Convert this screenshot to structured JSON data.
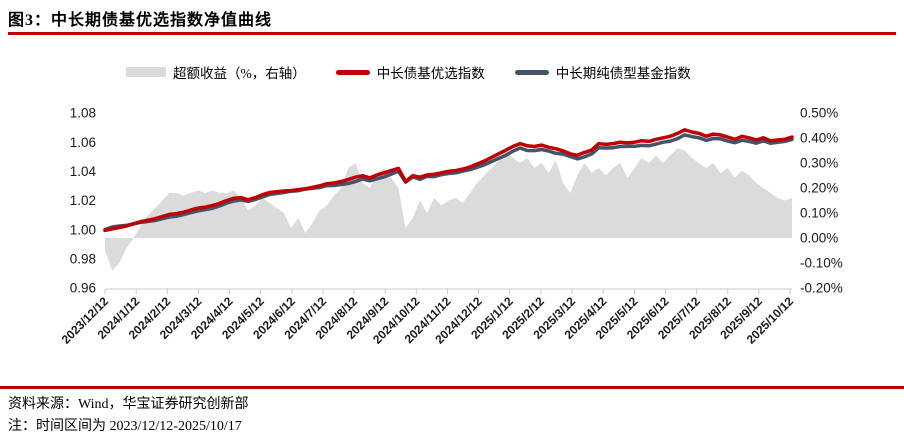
{
  "figure": {
    "title": "图3：中长期债基优选指数净值曲线",
    "source_line": "资料来源：Wind，华宝证券研究创新部",
    "note_line": "注：时间区间为 2023/12/12-2025/10/17",
    "accent_color": "#C00000",
    "axis_line_color": "#C9C9C9",
    "tick_text_color": "#1A1A1A"
  },
  "legend": {
    "items": [
      {
        "label": "超额收益（%，右轴）",
        "swatch": "area",
        "color": "#DBDBDB"
      },
      {
        "label": "中长债基优选指数",
        "swatch": "line",
        "color": "#C00000"
      },
      {
        "label": "中长期纯债型基金指数",
        "swatch": "line",
        "color": "#44546A"
      }
    ]
  },
  "chart_data": {
    "type": "line",
    "title": "中长期债基优选指数净值曲线",
    "grid": false,
    "legend_position": "top",
    "x_tick_labels": [
      "2023/12/12",
      "2024/1/12",
      "2024/2/12",
      "2024/3/12",
      "2024/4/12",
      "2024/5/12",
      "2024/6/12",
      "2024/7/12",
      "2024/8/12",
      "2024/9/12",
      "2024/10/12",
      "2024/11/12",
      "2024/12/12",
      "2025/1/12",
      "2025/2/12",
      "2025/3/12",
      "2025/4/12",
      "2025/5/12",
      "2025/6/12",
      "2025/7/12",
      "2025/8/12",
      "2025/9/12",
      "2025/10/12"
    ],
    "left_axis": {
      "ticks": [
        "1.08",
        "1.06",
        "1.04",
        "1.02",
        "1.00",
        "0.98",
        "0.96"
      ],
      "min": 0.96,
      "max": 1.08,
      "step": 0.02
    },
    "right_axis": {
      "ticks": [
        "0.50%",
        "0.40%",
        "0.30%",
        "0.20%",
        "0.10%",
        "0.00%",
        "-0.10%",
        "-0.20%"
      ],
      "min": -0.2,
      "max": 0.5,
      "step": 0.1
    },
    "sampling": "weekly points from 2023/12/12 to 2025/10/17",
    "series": [
      {
        "name": "超额收益（%，右轴）",
        "type": "area",
        "axis": "right",
        "color": "#DBDBDB",
        "values": [
          -0.05,
          -0.13,
          -0.1,
          -0.04,
          0.0,
          0.05,
          0.09,
          0.12,
          0.15,
          0.18,
          0.18,
          0.17,
          0.18,
          0.19,
          0.18,
          0.19,
          0.18,
          0.18,
          0.19,
          0.16,
          0.11,
          0.13,
          0.16,
          0.14,
          0.12,
          0.1,
          0.04,
          0.08,
          0.02,
          0.06,
          0.11,
          0.13,
          0.17,
          0.2,
          0.28,
          0.3,
          0.22,
          0.2,
          0.26,
          0.28,
          0.24,
          0.2,
          0.04,
          0.08,
          0.15,
          0.1,
          0.16,
          0.13,
          0.15,
          0.16,
          0.14,
          0.18,
          0.22,
          0.25,
          0.28,
          0.31,
          0.35,
          0.32,
          0.3,
          0.32,
          0.28,
          0.3,
          0.26,
          0.31,
          0.22,
          0.18,
          0.25,
          0.3,
          0.26,
          0.28,
          0.25,
          0.28,
          0.3,
          0.24,
          0.28,
          0.32,
          0.3,
          0.33,
          0.3,
          0.33,
          0.36,
          0.35,
          0.32,
          0.3,
          0.28,
          0.3,
          0.26,
          0.28,
          0.24,
          0.27,
          0.25,
          0.22,
          0.2,
          0.18,
          0.16,
          0.15,
          0.16
        ]
      },
      {
        "name": "中长债基优选指数",
        "type": "line",
        "axis": "left",
        "color": "#C00000",
        "values": [
          0.9995,
          1.0005,
          1.0015,
          1.0025,
          1.004,
          1.0055,
          1.0065,
          1.0075,
          1.009,
          1.0105,
          1.011,
          1.012,
          1.0135,
          1.0148,
          1.0155,
          1.0165,
          1.018,
          1.02,
          1.0215,
          1.022,
          1.0205,
          1.022,
          1.024,
          1.0255,
          1.026,
          1.0265,
          1.0268,
          1.0275,
          1.028,
          1.029,
          1.03,
          1.0315,
          1.032,
          1.033,
          1.0345,
          1.036,
          1.037,
          1.0355,
          1.0375,
          1.039,
          1.0405,
          1.042,
          1.033,
          1.037,
          1.036,
          1.0375,
          1.038,
          1.039,
          1.04,
          1.0405,
          1.0415,
          1.043,
          1.045,
          1.047,
          1.0495,
          1.052,
          1.0545,
          1.057,
          1.059,
          1.0575,
          1.057,
          1.058,
          1.0565,
          1.0555,
          1.054,
          1.052,
          1.051,
          1.053,
          1.0545,
          1.059,
          1.0585,
          1.059,
          1.06,
          1.0595,
          1.06,
          1.061,
          1.0605,
          1.062,
          1.063,
          1.064,
          1.066,
          1.0685,
          1.067,
          1.066,
          1.064,
          1.0655,
          1.065,
          1.0635,
          1.062,
          1.064,
          1.063,
          1.0615,
          1.063,
          1.061,
          1.0615,
          1.062,
          1.0635
        ]
      },
      {
        "name": "中长期纯债型基金指数",
        "type": "line",
        "axis": "left",
        "color": "#44546A",
        "values": [
          1.0,
          1.0018,
          1.0025,
          1.0029,
          1.004,
          1.005,
          1.0056,
          1.0063,
          1.0075,
          1.0087,
          1.0092,
          1.0103,
          1.0117,
          1.0129,
          1.0137,
          1.0146,
          1.0162,
          1.0182,
          1.0196,
          1.0204,
          1.0194,
          1.0207,
          1.0224,
          1.0241,
          1.0248,
          1.0255,
          1.0264,
          1.0267,
          1.0278,
          1.0284,
          1.0289,
          1.0302,
          1.0303,
          1.031,
          1.0317,
          1.033,
          1.0348,
          1.0335,
          1.0349,
          1.0362,
          1.0381,
          1.04,
          1.0326,
          1.0362,
          1.0345,
          1.0365,
          1.0364,
          1.0377,
          1.0385,
          1.0389,
          1.0401,
          1.0412,
          1.0428,
          1.0445,
          1.0467,
          1.0489,
          1.051,
          1.0538,
          1.056,
          1.0543,
          1.0542,
          1.055,
          1.0539,
          1.0524,
          1.0518,
          1.0502,
          1.0485,
          1.05,
          1.0519,
          1.0562,
          1.056,
          1.0562,
          1.057,
          1.0571,
          1.0572,
          1.0578,
          1.0575,
          1.0587,
          1.06,
          1.0607,
          1.0624,
          1.065,
          1.0638,
          1.063,
          1.0612,
          1.0625,
          1.0624,
          1.0607,
          1.0596,
          1.0613,
          1.0605,
          1.0593,
          1.061,
          1.0592,
          1.0599,
          1.0605,
          1.0619
        ]
      }
    ]
  }
}
